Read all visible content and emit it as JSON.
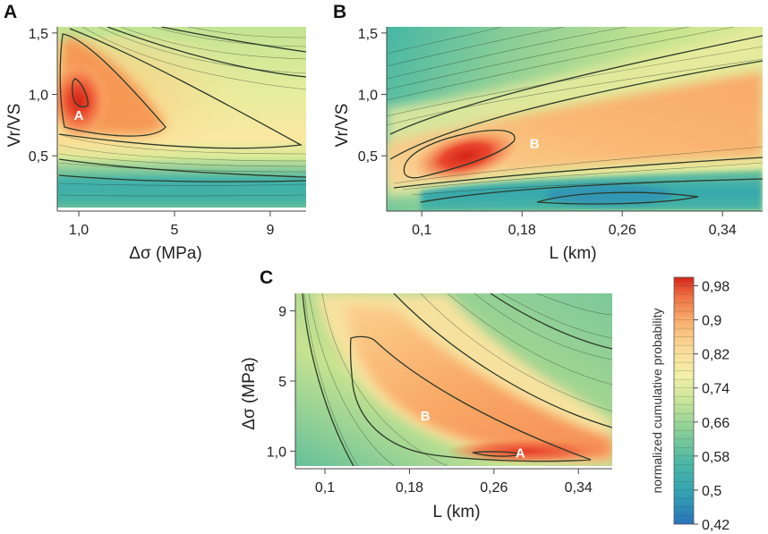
{
  "colors": {
    "scale": [
      "#2a72b8",
      "#3fb7ae",
      "#6cc39a",
      "#a6d68c",
      "#dceb9a",
      "#fbe8a2",
      "#fbc17a",
      "#f68f52",
      "#e9472d",
      "#c62018"
    ],
    "contour": "#2c3a2a"
  },
  "chart_data": [
    {
      "panel": "A",
      "type": "contour",
      "xlabel": "Δσ (MPa)",
      "ylabel": "Vr/VS",
      "xticks": [
        "1,0",
        "5",
        "9"
      ],
      "xtick_values": [
        1,
        5,
        9
      ],
      "yticks": [
        "0,5",
        "1,0",
        "1,5"
      ],
      "ytick_values": [
        0.5,
        1.0,
        1.5
      ],
      "xlim": [
        0.1,
        10.5
      ],
      "ylim": [
        0.05,
        1.55
      ],
      "peak": {
        "x": 1.0,
        "y": 0.95
      },
      "marker": {
        "label": "A",
        "x": 1.0,
        "y": 0.83
      }
    },
    {
      "panel": "B",
      "type": "contour",
      "xlabel": "L (km)",
      "ylabel": "Vr/VS",
      "xticks": [
        "0,1",
        "0,18",
        "0,26",
        "0,34"
      ],
      "xtick_values": [
        0.1,
        0.18,
        0.26,
        0.34
      ],
      "yticks": [
        "0,5",
        "1,0",
        "1,5"
      ],
      "ytick_values": [
        0.5,
        1.0,
        1.5
      ],
      "xlim": [
        0.072,
        0.372
      ],
      "ylim": [
        0.05,
        1.55
      ],
      "peak": {
        "x": 0.135,
        "y": 0.5
      },
      "marker": {
        "label": "B",
        "x": 0.19,
        "y": 0.6
      }
    },
    {
      "panel": "C",
      "type": "contour",
      "xlabel": "L (km)",
      "ylabel": "Δσ (MPa)",
      "xticks": [
        "0,1",
        "0,18",
        "0,26",
        "0,34"
      ],
      "xtick_values": [
        0.1,
        0.18,
        0.26,
        0.34
      ],
      "yticks": [
        "1,0",
        "5",
        "9"
      ],
      "ytick_values": [
        1,
        5,
        9
      ],
      "xlim": [
        0.072,
        0.372
      ],
      "ylim": [
        0.0,
        10.0
      ],
      "peak": {
        "x": 0.29,
        "y": 1.0
      },
      "markers": [
        {
          "label": "B",
          "x": 0.195,
          "y": 3.0
        },
        {
          "label": "A",
          "x": 0.285,
          "y": 0.9
        }
      ]
    }
  ],
  "colorbar": {
    "label": "normalized cumulative probability",
    "ticks": [
      "0,98",
      "0,9",
      "0,82",
      "0,74",
      "0,66",
      "0,58",
      "0,5",
      "0,42"
    ],
    "tick_values": [
      0.98,
      0.9,
      0.82,
      0.74,
      0.66,
      0.58,
      0.5,
      0.42
    ],
    "range": [
      0.42,
      1.0
    ]
  }
}
